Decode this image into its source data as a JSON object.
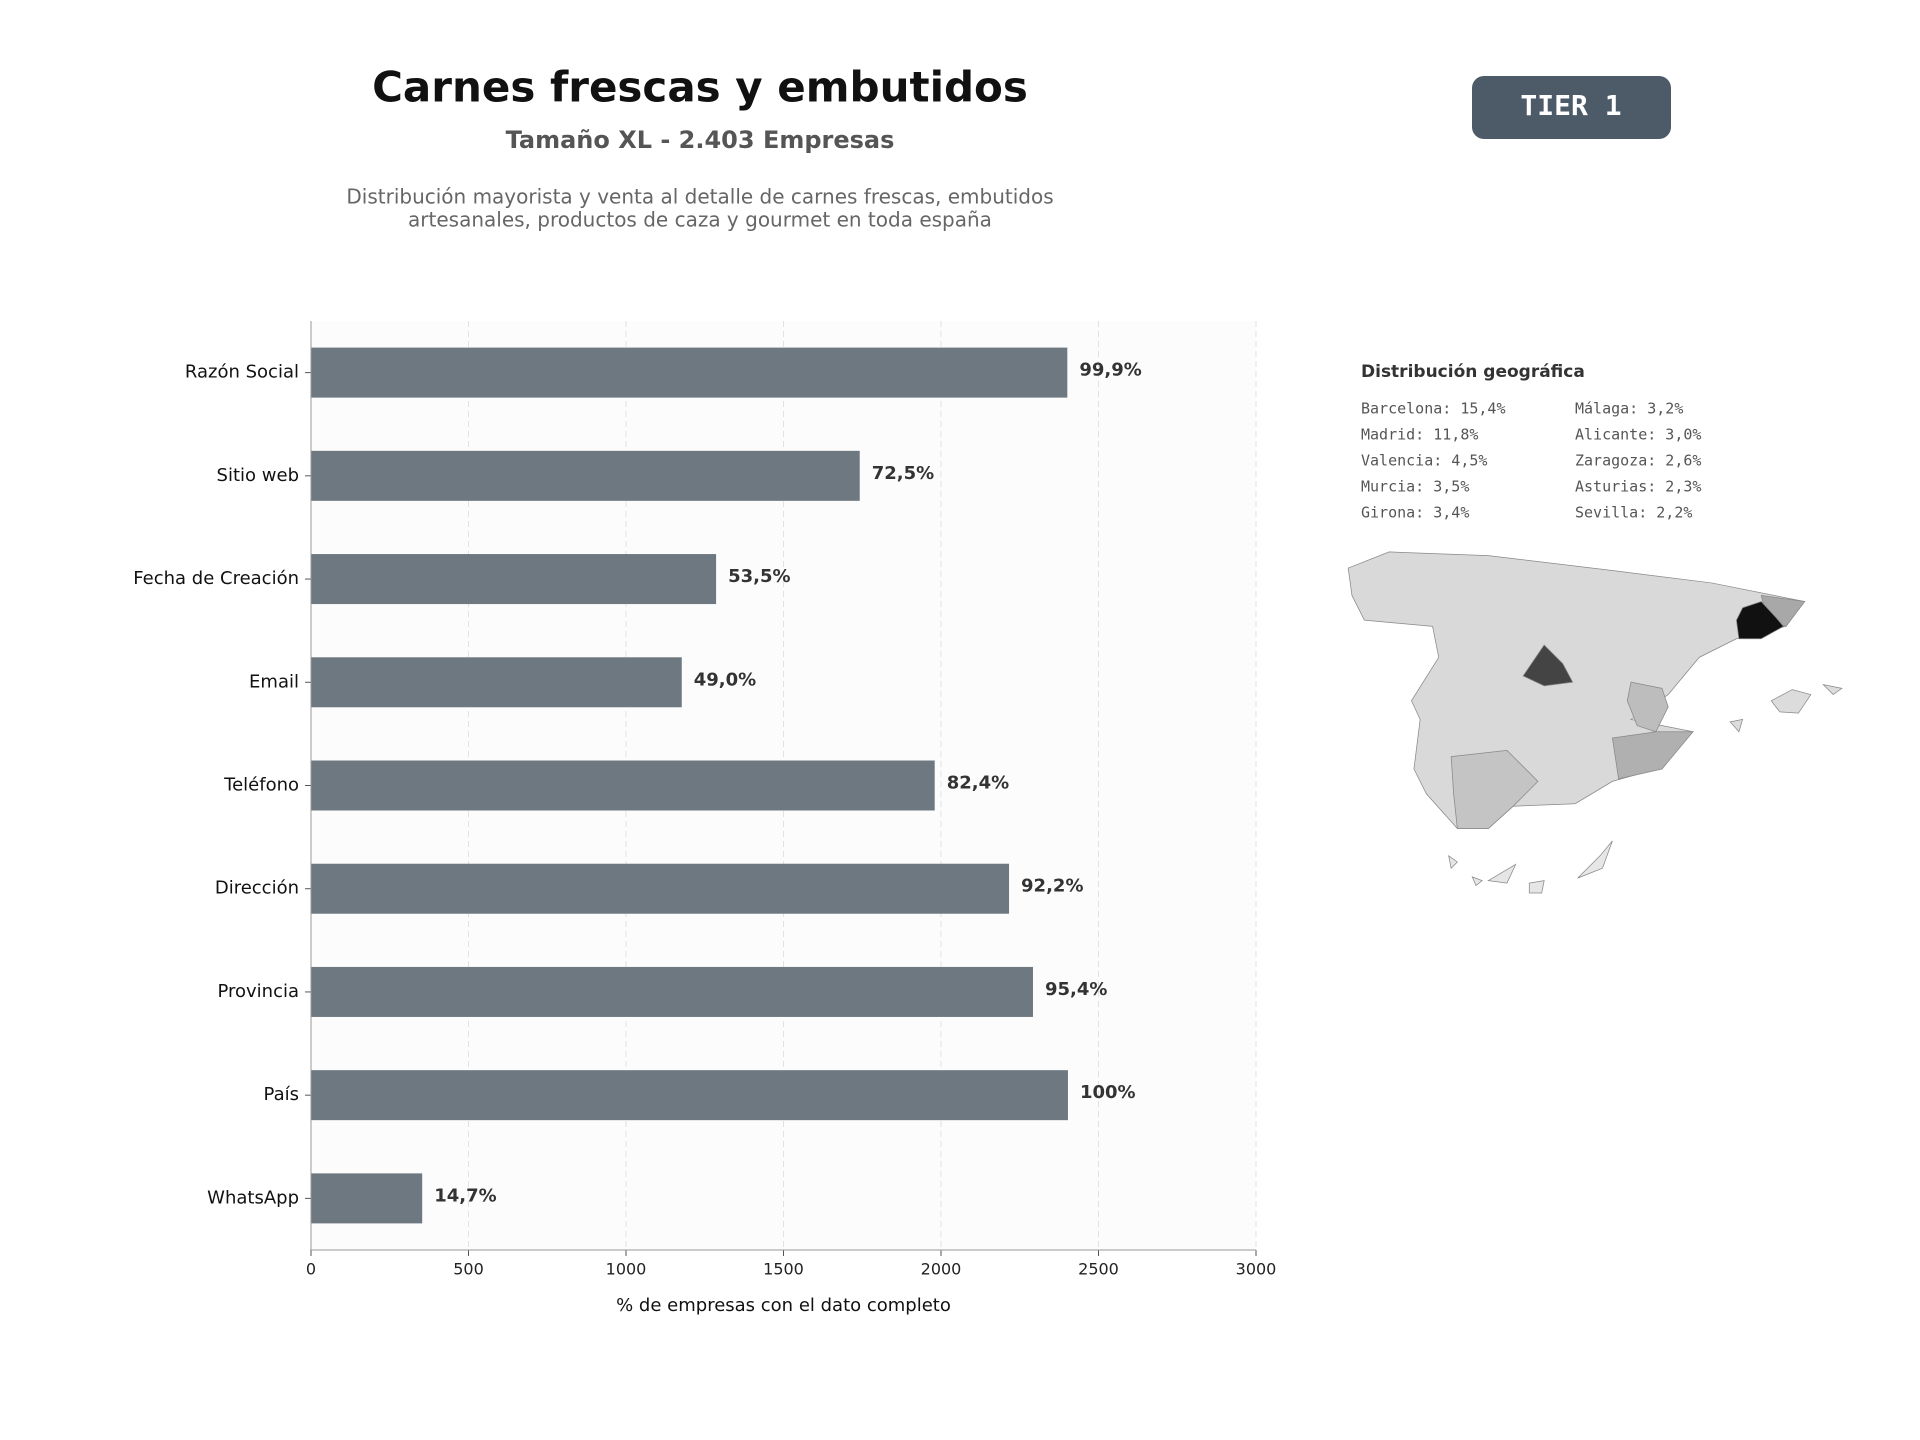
{
  "header": {
    "title": "Carnes frescas y embutidos",
    "subtitle": "Tamaño XL - 2.403 Empresas",
    "description": [
      "Distribución mayorista y venta al detalle de carnes frescas, embutidos",
      "artesanales, productos de caza y gourmet en toda españa"
    ],
    "badge": "TIER 1"
  },
  "geo": {
    "title": "Distribución geográfica",
    "items": [
      "Barcelona: 15,4%",
      "Madrid: 11,8%",
      "Valencia: 4,5%",
      "Murcia: 3,5%",
      "Girona: 3,4%",
      "Málaga: 3,2%",
      "Alicante: 3,0%",
      "Zaragoza: 2,6%",
      "Asturias: 2,3%",
      "Sevilla: 2,2%"
    ]
  },
  "chart_data": {
    "type": "barh",
    "xlabel": "% de empresas con el dato completo",
    "categories": [
      "Razón Social",
      "Sitio web",
      "Fecha de Creación",
      "Email",
      "Teléfono",
      "Dirección",
      "Provincia",
      "País",
      "WhatsApp"
    ],
    "values": [
      2401,
      1742,
      1286,
      1177,
      1980,
      2216,
      2292,
      2403,
      353
    ],
    "value_labels": [
      "99,9%",
      "72,5%",
      "53,5%",
      "49,0%",
      "82,4%",
      "92,2%",
      "95,4%",
      "100%",
      "14,7%"
    ],
    "color": "#6e7881",
    "xlim": [
      0,
      3000
    ],
    "xticks": [
      0,
      500,
      1000,
      1500,
      2000,
      2500,
      3000
    ],
    "grid": true
  }
}
